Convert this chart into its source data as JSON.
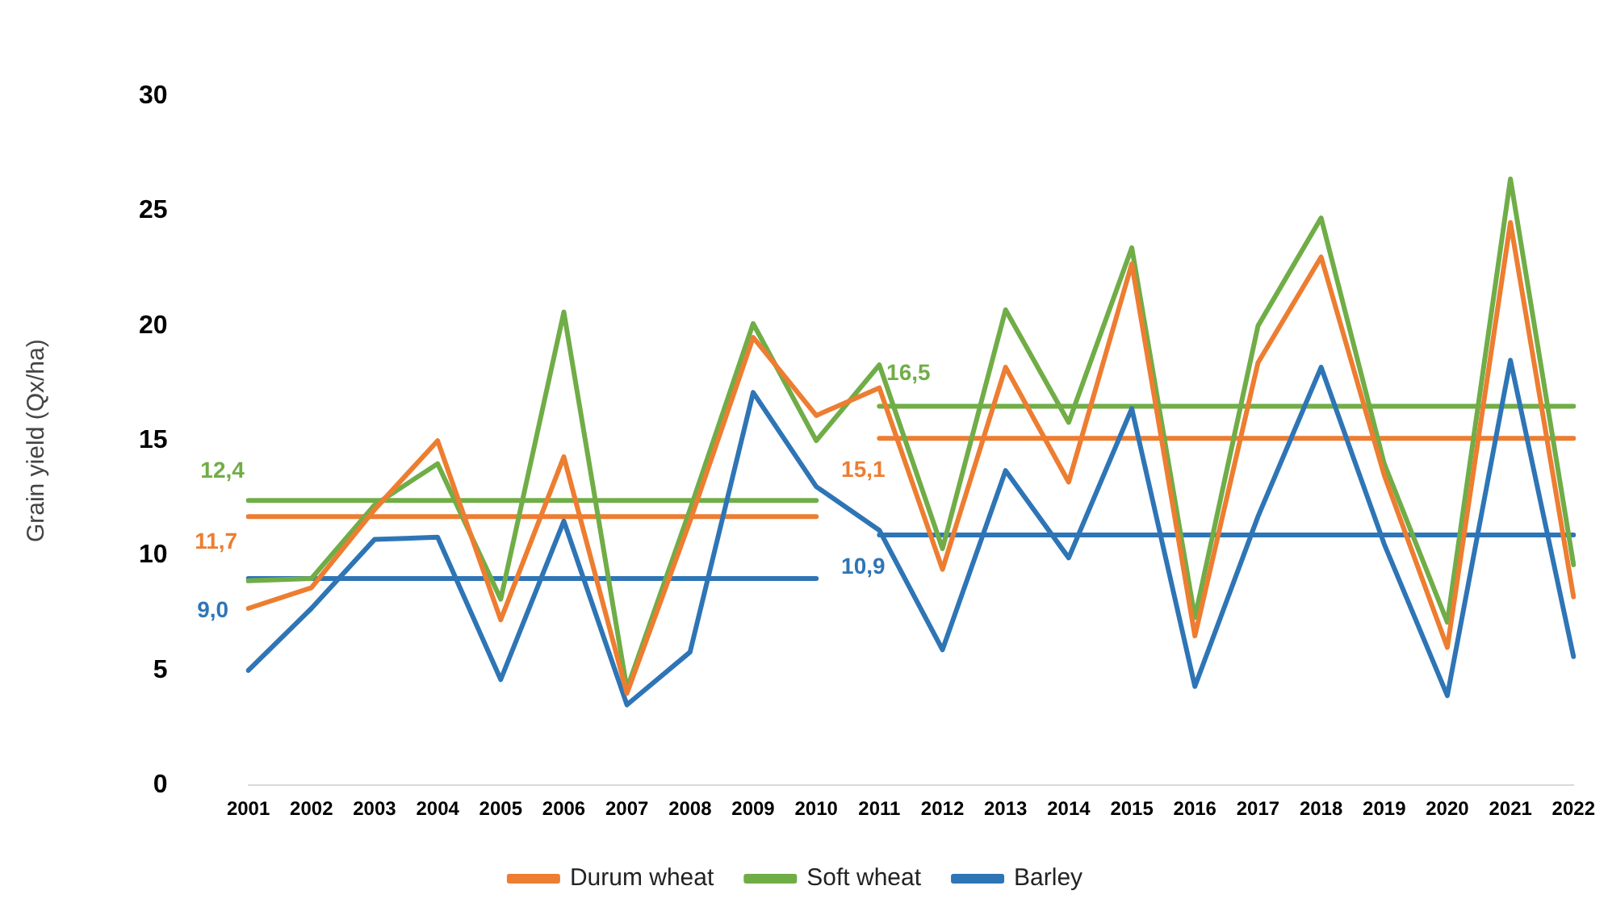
{
  "chart_data": {
    "type": "line",
    "ylabel": "Grain yield (Qx/ha)",
    "categories": [
      "2001",
      "2002",
      "2003",
      "2004",
      "2005",
      "2006",
      "2007",
      "2008",
      "2009",
      "2010",
      "2011",
      "2012",
      "2013",
      "2014",
      "2015",
      "2016",
      "2017",
      "2018",
      "2019",
      "2020",
      "2021",
      "2022"
    ],
    "ylim": [
      0,
      30
    ],
    "yticks": [
      0,
      5,
      10,
      15,
      20,
      25,
      30
    ],
    "grid": false,
    "legend": "bottom",
    "marker": "none",
    "line_style": "solid",
    "series": [
      {
        "name": "Durum wheat",
        "color": "#ed7d31",
        "values": [
          7.7,
          8.6,
          12,
          15,
          7.2,
          14.3,
          4,
          11.5,
          19.5,
          16.1,
          17.3,
          9.4,
          18.2,
          13.2,
          22.7,
          6.5,
          18.4,
          23,
          13.5,
          6,
          24.5,
          8.2
        ]
      },
      {
        "name": "Soft wheat",
        "color": "#70ad47",
        "values": [
          8.9,
          9,
          12.2,
          14,
          8.1,
          20.6,
          4.2,
          12,
          20.1,
          15,
          18.3,
          10.3,
          20.7,
          15.8,
          23.4,
          7.3,
          20,
          24.7,
          14,
          7.1,
          26.4,
          9.6
        ]
      },
      {
        "name": "Barley",
        "color": "#2e75b6",
        "values": [
          5,
          7.7,
          10.7,
          10.8,
          4.6,
          11.5,
          3.5,
          5.8,
          17.1,
          13,
          11.1,
          5.9,
          13.7,
          9.9,
          16.4,
          4.3,
          11.7,
          18.2,
          10.5,
          3.9,
          18.5,
          5.6
        ]
      },
      {
        "color": "#70ad47",
        "values": [
          12.4,
          12.4,
          12.4,
          12.4,
          12.4,
          12.4,
          12.4,
          12.4,
          12.4,
          12.4,
          null,
          null,
          null,
          null,
          null,
          null,
          null,
          null,
          null,
          null,
          null,
          null
        ],
        "value_labels": [
          "12,4",
          null,
          null,
          null,
          null,
          null,
          null,
          null,
          null,
          null,
          null,
          null,
          null,
          null,
          null,
          null,
          null,
          null,
          null,
          null,
          null,
          null
        ]
      },
      {
        "color": "#ed7d31",
        "values": [
          11.7,
          11.7,
          11.7,
          11.7,
          11.7,
          11.7,
          11.7,
          11.7,
          11.7,
          11.7,
          null,
          null,
          null,
          null,
          null,
          null,
          null,
          null,
          null,
          null,
          null,
          null
        ],
        "value_labels": [
          "11,7",
          null,
          null,
          null,
          null,
          null,
          null,
          null,
          null,
          null,
          null,
          null,
          null,
          null,
          null,
          null,
          null,
          null,
          null,
          null,
          null,
          null
        ]
      },
      {
        "color": "#2e75b6",
        "values": [
          9,
          9,
          9,
          9,
          9,
          9,
          9,
          9,
          9,
          9,
          null,
          null,
          null,
          null,
          null,
          null,
          null,
          null,
          null,
          null,
          null,
          null
        ],
        "value_labels": [
          "9,0",
          null,
          null,
          null,
          null,
          null,
          null,
          null,
          null,
          null,
          null,
          null,
          null,
          null,
          null,
          null,
          null,
          null,
          null,
          null,
          null,
          null
        ]
      },
      {
        "color": "#70ad47",
        "values": [
          null,
          null,
          null,
          null,
          null,
          null,
          null,
          null,
          null,
          null,
          16.5,
          16.5,
          16.5,
          16.5,
          16.5,
          16.5,
          16.5,
          16.5,
          16.5,
          16.5,
          16.5,
          16.5
        ],
        "value_labels": [
          null,
          null,
          null,
          null,
          null,
          null,
          null,
          null,
          null,
          null,
          "16,5",
          null,
          null,
          null,
          null,
          null,
          null,
          null,
          null,
          null,
          null,
          null
        ]
      },
      {
        "color": "#ed7d31",
        "values": [
          null,
          null,
          null,
          null,
          null,
          null,
          null,
          null,
          null,
          null,
          15.1,
          15.1,
          15.1,
          15.1,
          15.1,
          15.1,
          15.1,
          15.1,
          15.1,
          15.1,
          15.1,
          15.1
        ],
        "value_labels": [
          null,
          null,
          null,
          null,
          null,
          null,
          null,
          null,
          null,
          null,
          "15,1",
          null,
          null,
          null,
          null,
          null,
          null,
          null,
          null,
          null,
          null,
          null
        ]
      },
      {
        "color": "#2e75b6",
        "values": [
          null,
          null,
          null,
          null,
          null,
          null,
          null,
          null,
          null,
          null,
          10.9,
          10.9,
          10.9,
          10.9,
          10.9,
          10.9,
          10.9,
          10.9,
          10.9,
          10.9,
          10.9,
          10.9
        ],
        "value_labels": [
          null,
          null,
          null,
          null,
          null,
          null,
          null,
          null,
          null,
          null,
          "10,9",
          null,
          null,
          null,
          null,
          null,
          null,
          null,
          null,
          null,
          null,
          null
        ]
      }
    ]
  }
}
